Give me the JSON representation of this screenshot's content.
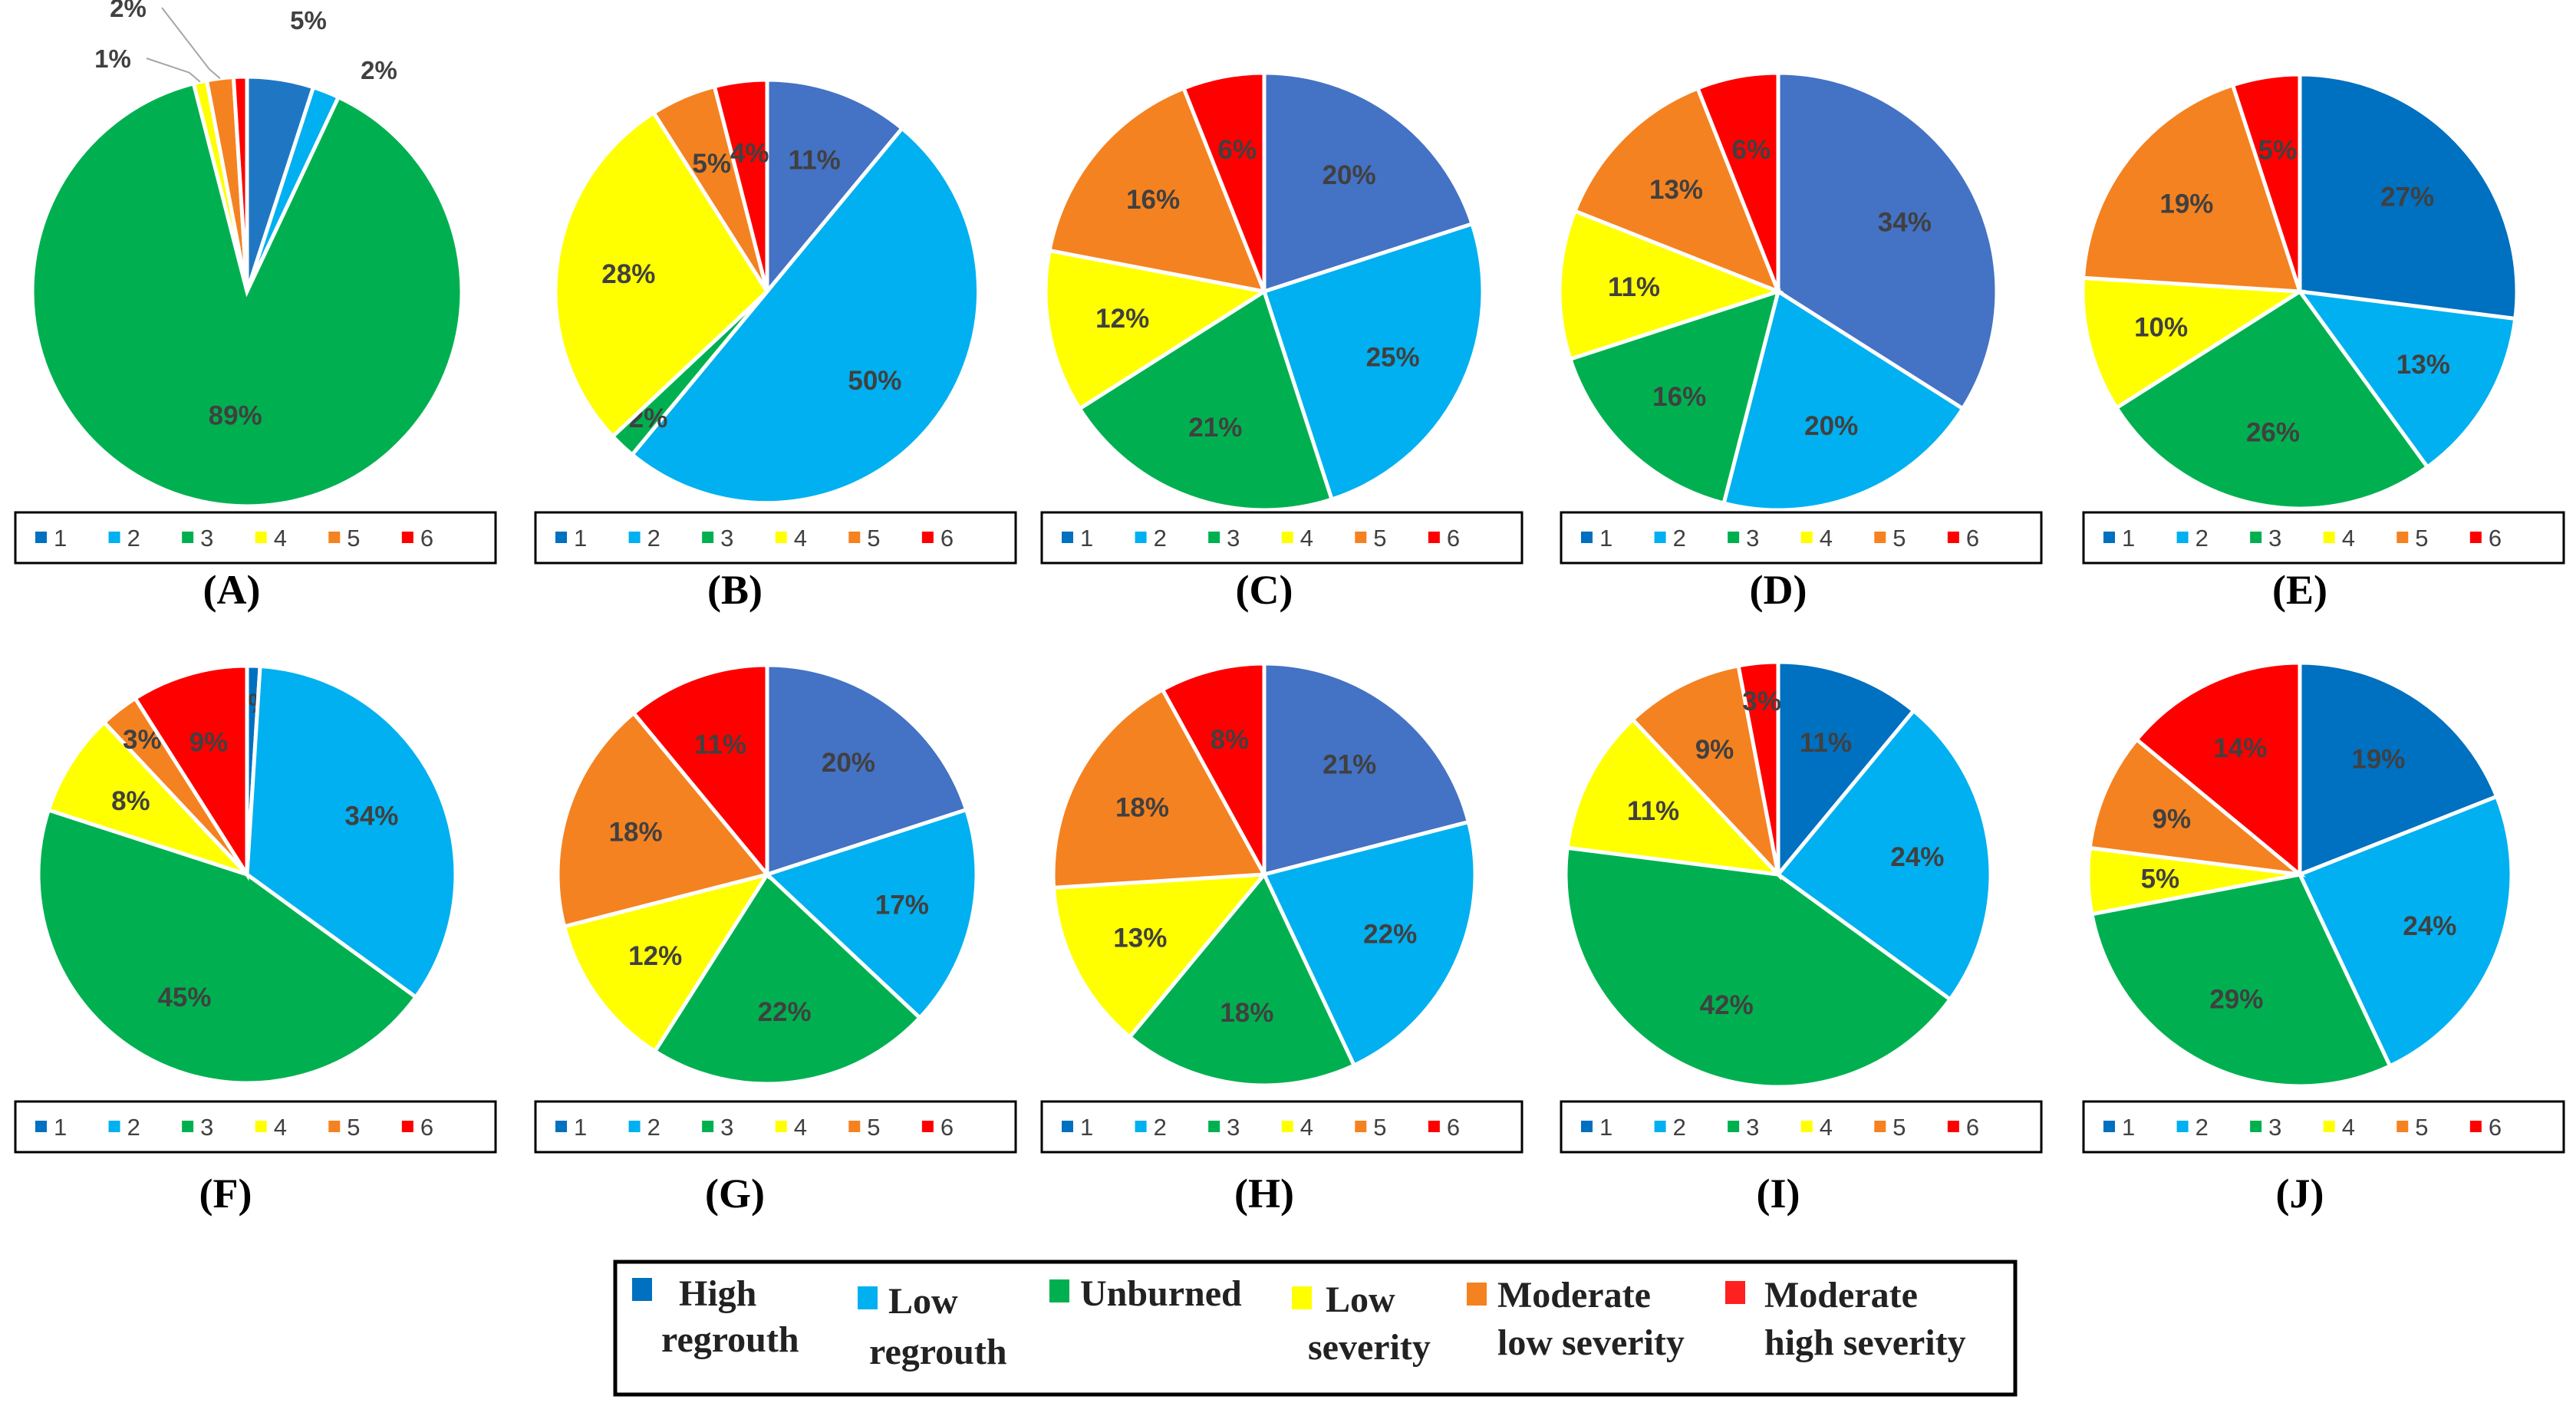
{
  "chart_data": [
    {
      "type": "pie",
      "panel": "(A)",
      "categories": [
        "1",
        "2",
        "3",
        "4",
        "5",
        "6"
      ],
      "values": [
        5,
        2,
        89,
        1,
        2,
        1
      ]
    },
    {
      "type": "pie",
      "panel": "(B)",
      "categories": [
        "1",
        "2",
        "3",
        "4",
        "5",
        "6"
      ],
      "values": [
        11,
        50,
        2,
        28,
        5,
        4
      ]
    },
    {
      "type": "pie",
      "panel": "(C)",
      "categories": [
        "1",
        "2",
        "3",
        "4",
        "5",
        "6"
      ],
      "values": [
        20,
        25,
        21,
        12,
        16,
        6
      ]
    },
    {
      "type": "pie",
      "panel": "(D)",
      "categories": [
        "1",
        "2",
        "3",
        "4",
        "5",
        "6"
      ],
      "values": [
        34,
        20,
        16,
        11,
        13,
        6
      ]
    },
    {
      "type": "pie",
      "panel": "(E)",
      "categories": [
        "1",
        "2",
        "3",
        "4",
        "5",
        "6"
      ],
      "values": [
        27,
        13,
        26,
        10,
        19,
        5
      ]
    },
    {
      "type": "pie",
      "panel": "(F)",
      "categories": [
        "1",
        "2",
        "3",
        "4",
        "5",
        "6"
      ],
      "values": [
        1,
        34,
        45,
        8,
        3,
        9
      ]
    },
    {
      "type": "pie",
      "panel": "(G)",
      "categories": [
        "1",
        "2",
        "3",
        "4",
        "5",
        "6"
      ],
      "values": [
        20,
        17,
        22,
        12,
        18,
        11
      ]
    },
    {
      "type": "pie",
      "panel": "(H)",
      "categories": [
        "1",
        "2",
        "3",
        "4",
        "5",
        "6"
      ],
      "values": [
        21,
        22,
        18,
        13,
        18,
        8
      ]
    },
    {
      "type": "pie",
      "panel": "(I)",
      "categories": [
        "1",
        "2",
        "3",
        "4",
        "5",
        "6"
      ],
      "values": [
        11,
        24,
        42,
        11,
        9,
        3
      ]
    },
    {
      "type": "pie",
      "panel": "(J)",
      "categories": [
        "1",
        "2",
        "3",
        "4",
        "5",
        "6"
      ],
      "values": [
        19,
        24,
        29,
        5,
        9,
        14
      ]
    }
  ],
  "colors": {
    "panel_first": {
      "A": "#1f77c4",
      "B": "#4472c4",
      "C": "#4472c4",
      "D": "#4472c4",
      "E": "#0070c0",
      "F": "#0070c0",
      "G": "#4472c4",
      "H": "#4472c4",
      "I": "#0070c0",
      "J": "#0070c0"
    },
    "2": "#00b0f0",
    "3": "#00b050",
    "4": "#ffff00",
    "5": "#f58220",
    "6": "#ff0000",
    "legend": [
      "#0070c0",
      "#00b0f0",
      "#00b050",
      "#ffff00",
      "#f58220",
      "#ff0000"
    ]
  },
  "key": [
    {
      "lines": [
        "High",
        "regrouth"
      ],
      "color": "#0070c0"
    },
    {
      "lines": [
        "Low",
        "regrouth"
      ],
      "color": "#00b0f0"
    },
    {
      "lines": [
        "Unburned"
      ],
      "color": "#00b050"
    },
    {
      "lines": [
        "Low",
        "severity"
      ],
      "color": "#ffff00"
    },
    {
      "lines": [
        "Moderate",
        "low severity"
      ],
      "color": "#f58220"
    },
    {
      "lines": [
        "Moderate",
        "high severity"
      ],
      "color": "#ff2020"
    }
  ]
}
